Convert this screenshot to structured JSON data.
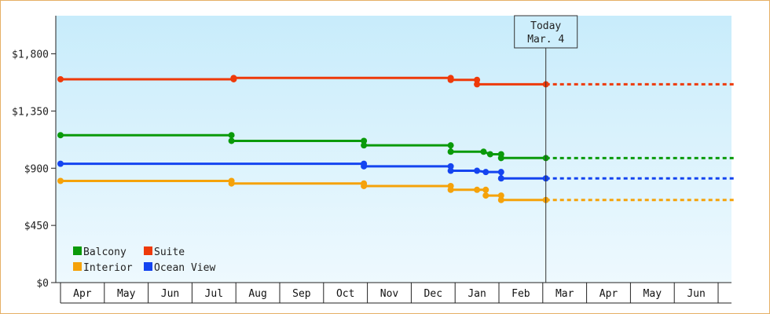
{
  "chart_data": {
    "type": "line",
    "title": "",
    "xlabel": "",
    "ylabel": "",
    "ylim": [
      0,
      2100
    ],
    "yticks": [
      0,
      450,
      900,
      1350,
      1800
    ],
    "ytick_labels": [
      "$0",
      "$450",
      "$900",
      "$1,350",
      "$1,800"
    ],
    "months": [
      "Apr",
      "May",
      "Jun",
      "Jul",
      "Aug",
      "Sep",
      "Oct",
      "Nov",
      "Dec",
      "Jan",
      "Feb",
      "Mar",
      "Apr",
      "May",
      "Jun"
    ],
    "x_unit": "months since start of Apr",
    "today": {
      "label": "Today",
      "date": "Mar. 4",
      "x": 11.07
    },
    "legend_placement": "bottom-left",
    "grid": false,
    "step": true,
    "series": [
      {
        "name": "Balcony",
        "color": "#0a9a0a",
        "points": [
          [
            0.0,
            1160
          ],
          [
            3.9,
            1160
          ],
          [
            3.9,
            1115
          ],
          [
            6.92,
            1115
          ],
          [
            6.92,
            1080
          ],
          [
            8.9,
            1080
          ],
          [
            8.9,
            1030
          ],
          [
            9.65,
            1030
          ],
          [
            9.8,
            1010
          ],
          [
            10.05,
            1010
          ],
          [
            10.05,
            980
          ],
          [
            11.07,
            980
          ]
        ],
        "projection_end": 15.4
      },
      {
        "name": "Suite",
        "color": "#ee3a0a",
        "points": [
          [
            0.0,
            1600
          ],
          [
            3.95,
            1600
          ],
          [
            3.95,
            1610
          ],
          [
            8.9,
            1610
          ],
          [
            8.9,
            1595
          ],
          [
            9.5,
            1595
          ],
          [
            9.5,
            1560
          ],
          [
            11.07,
            1560
          ]
        ],
        "projection_end": 15.4
      },
      {
        "name": "Interior",
        "color": "#f5a20a",
        "points": [
          [
            0.0,
            800
          ],
          [
            3.9,
            800
          ],
          [
            3.9,
            780
          ],
          [
            6.92,
            780
          ],
          [
            6.92,
            760
          ],
          [
            8.9,
            760
          ],
          [
            8.9,
            730
          ],
          [
            9.5,
            730
          ],
          [
            9.7,
            730
          ],
          [
            9.7,
            685
          ],
          [
            10.05,
            685
          ],
          [
            10.05,
            650
          ],
          [
            11.07,
            650
          ]
        ],
        "projection_end": 15.4
      },
      {
        "name": "Ocean View",
        "color": "#1444f0",
        "points": [
          [
            0.0,
            935
          ],
          [
            6.92,
            935
          ],
          [
            6.92,
            915
          ],
          [
            8.9,
            915
          ],
          [
            8.9,
            880
          ],
          [
            9.5,
            880
          ],
          [
            9.7,
            870
          ],
          [
            10.05,
            870
          ],
          [
            10.05,
            820
          ],
          [
            11.07,
            820
          ]
        ],
        "projection_end": 15.4
      }
    ]
  }
}
